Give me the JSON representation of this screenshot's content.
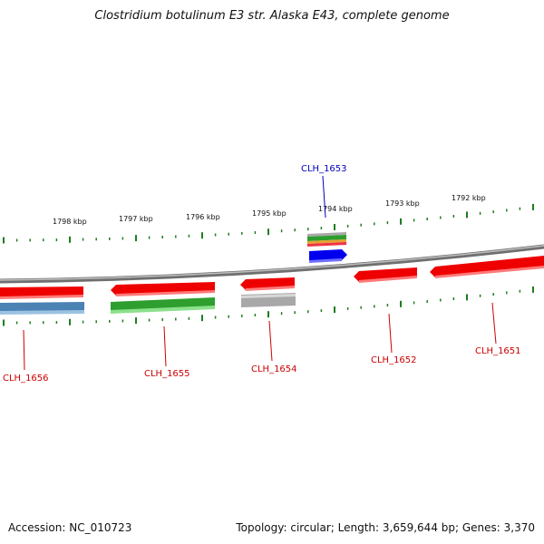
{
  "title": "Clostridium botulinum E3 str. Alaska E43, complete genome",
  "scale_labels": [
    "1798 kbp",
    "1797 kbp",
    "1796 kbp",
    "1795 kbp",
    "1794 kbp",
    "1793 kbp",
    "1792 kbp"
  ],
  "colors": {
    "backbone": "#8a8a8a",
    "tick": "#1e7d1e",
    "gene_red": "#ee0000",
    "gene_blue_steel": "#4a82b4",
    "gene_green": "#2e9e2e",
    "gene_gray": "#a8a8a8",
    "gene_blue": "#0000ee",
    "label_red": "#cc0000",
    "label_blue": "#0000bb"
  },
  "genes": [
    {
      "label": "CLH_1656",
      "color": "red"
    },
    {
      "label": "CLH_1655",
      "color": "red"
    },
    {
      "label": "CLH_1654",
      "color": "red"
    },
    {
      "label": "CLH_1653",
      "color": "blue"
    },
    {
      "label": "CLH_1652",
      "color": "red"
    },
    {
      "label": "CLH_1651",
      "color": "red"
    }
  ],
  "footer": {
    "accession": "Accession: NC_010723",
    "summary": "Topology: circular; Length: 3,659,644 bp; Genes: 3,370"
  }
}
